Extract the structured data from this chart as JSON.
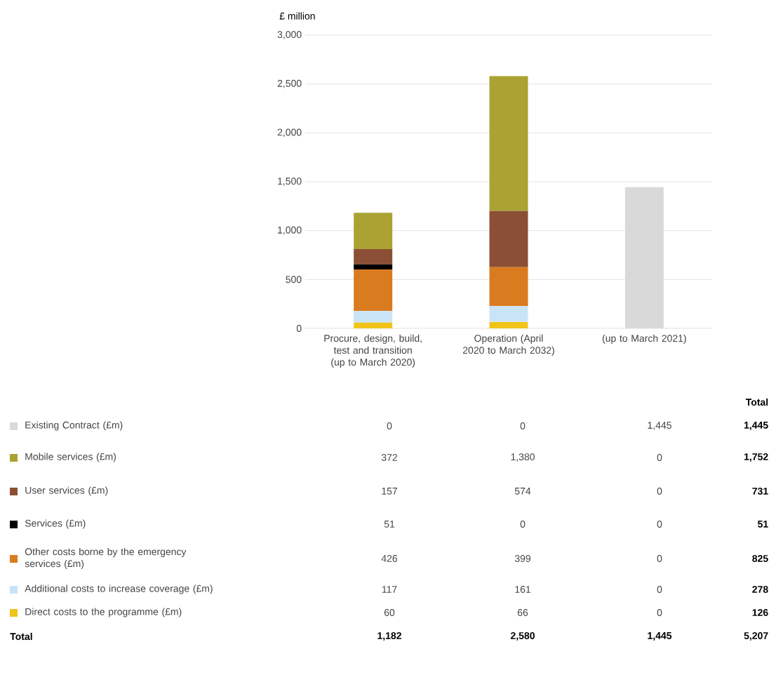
{
  "chart_data": {
    "type": "bar",
    "stacked": true,
    "ylabel": "£ million",
    "categories": [
      "Procure, design, build, test and transition (up to March 2020)",
      "Operation (April 2020 to March 2032)",
      "(up to March 2021)"
    ],
    "series": [
      {
        "name": "Direct costs to the programme (£m)",
        "color": "#f0c419",
        "values": [
          60,
          66,
          0
        ],
        "value_labels": [
          "60",
          "66",
          "0"
        ]
      },
      {
        "name": "Additional costs to increase coverage (£m)",
        "color": "#c9e4f5",
        "values": [
          117,
          161,
          0
        ],
        "value_labels": [
          "117",
          "161",
          "0"
        ]
      },
      {
        "name": "Other costs borne by the emergency services (£m)",
        "color": "#d97b1f",
        "values": [
          426,
          399,
          0
        ],
        "value_labels": [
          "426",
          "399",
          "0"
        ]
      },
      {
        "name": "Services (£m)",
        "color": "#000000",
        "values": [
          51,
          0,
          0
        ],
        "value_labels": [
          "51",
          "0",
          "0"
        ]
      },
      {
        "name": "User services (£m)",
        "color": "#8b4f35",
        "values": [
          157,
          574,
          0
        ],
        "value_labels": [
          "157",
          "574",
          "0"
        ]
      },
      {
        "name": "Mobile services (£m)",
        "color": "#aaa232",
        "values": [
          372,
          1380,
          0
        ],
        "value_labels": [
          "372",
          "1,380",
          "0"
        ]
      },
      {
        "name": "Existing Contract (£m)",
        "color": "#d9d9d9",
        "values": [
          0,
          0,
          1445
        ],
        "value_labels": [
          "0",
          "0",
          "1,445"
        ]
      }
    ],
    "ylim": [
      0,
      3000
    ],
    "yticks": [
      0,
      {
        "value": 500,
        "label": "500"
      },
      {
        "value": 1000,
        "label": "1,000"
      },
      {
        "value": 1500,
        "label": "1,500"
      },
      {
        "value": 2000,
        "label": "2,000"
      },
      {
        "value": 2500,
        "label": "2,500"
      },
      {
        "value": 3000,
        "label": "3,000"
      }
    ],
    "grid": "y",
    "legend": "bottom",
    "annotations": [
      "Total",
      "Total",
      "1,445",
      "1,752",
      "731",
      "51",
      "825",
      "278",
      "126",
      "5,207",
      "1,182",
      "2,580",
      "1,445"
    ]
  }
}
